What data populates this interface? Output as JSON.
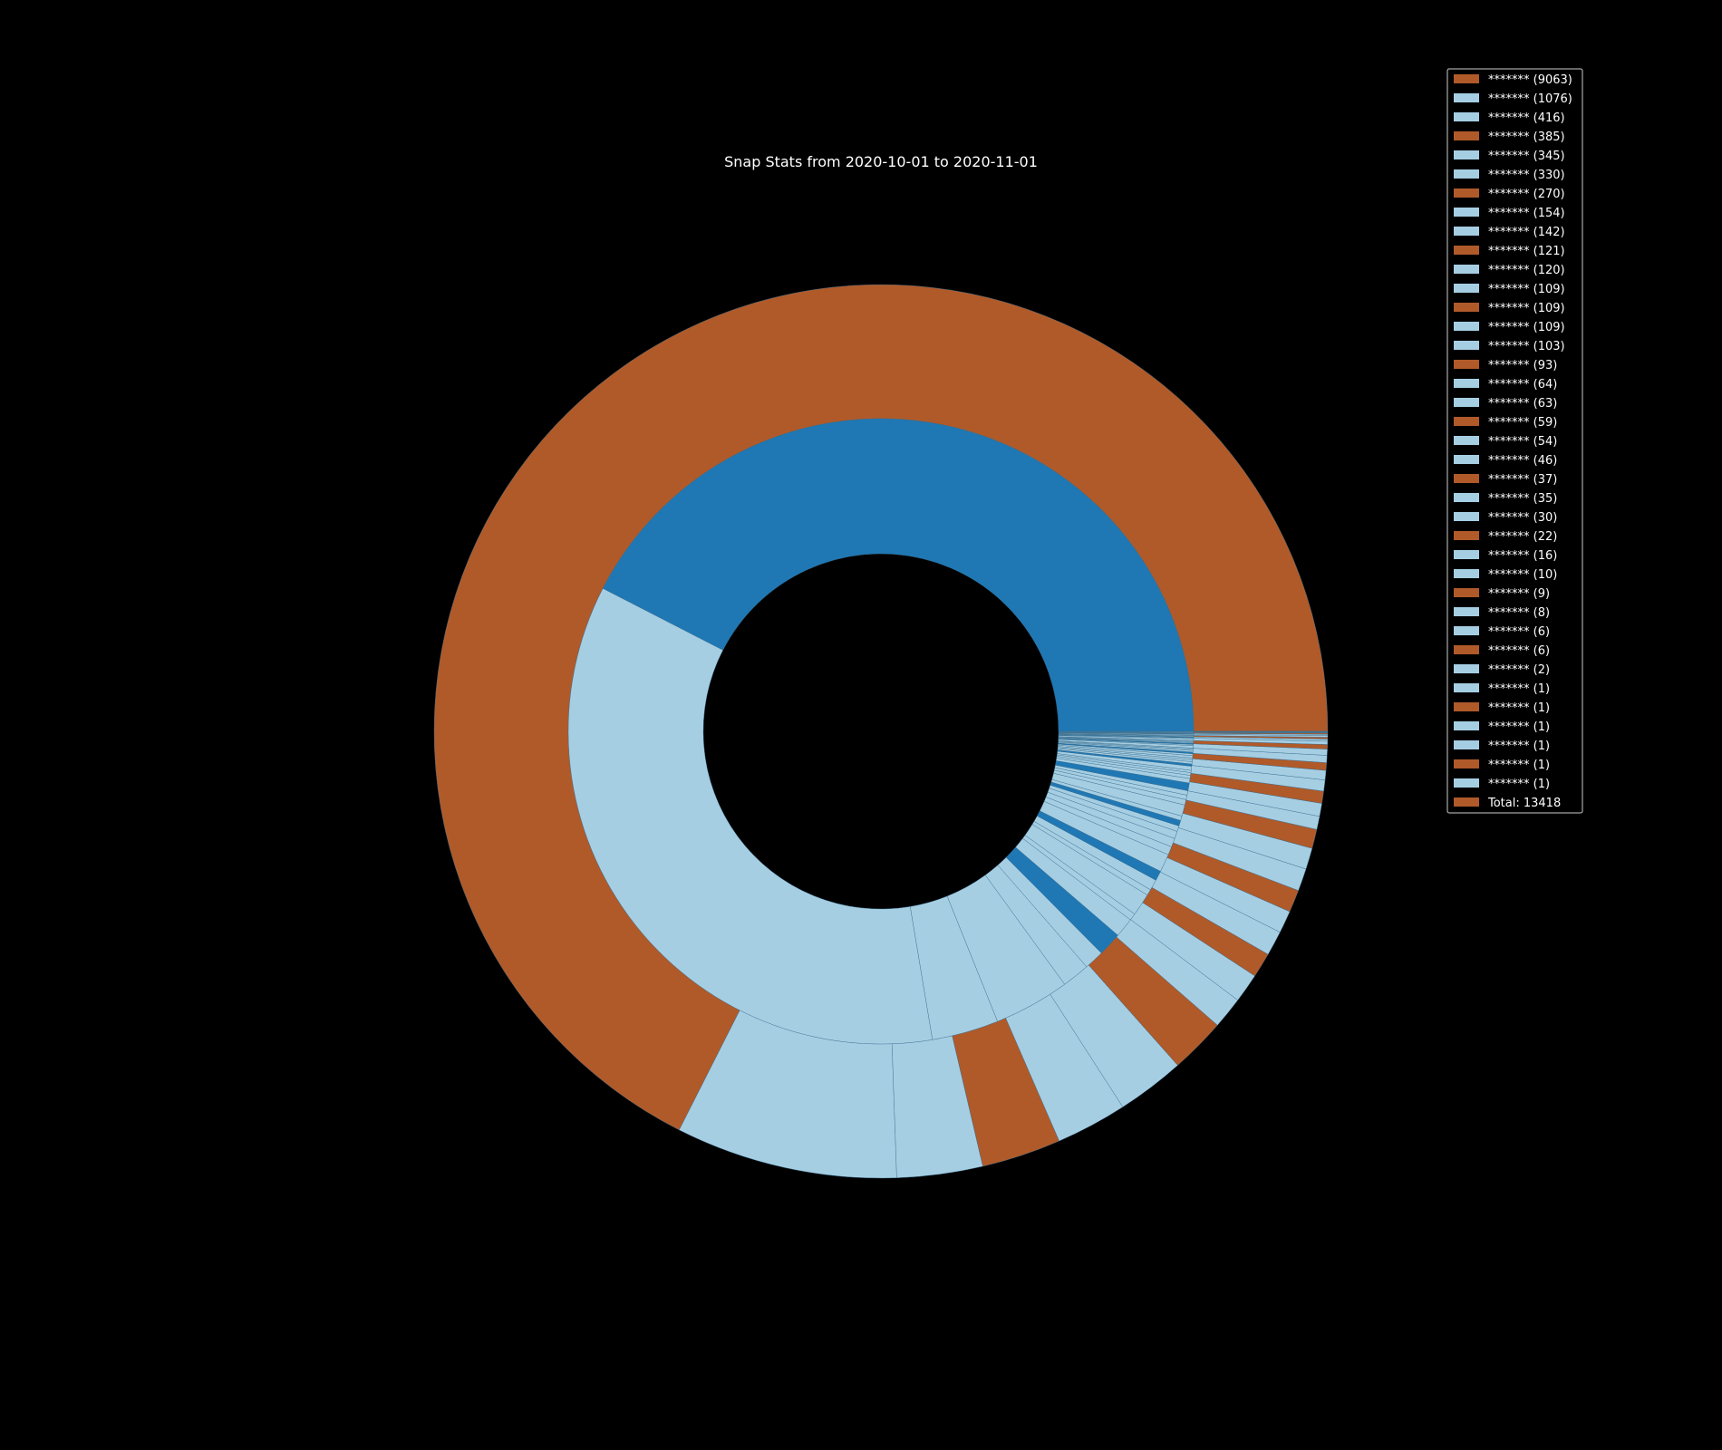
{
  "chart_data": {
    "type": "pie",
    "title": "Snap Stats from 2020-10-01 to 2020-11-01",
    "colors": {
      "outer": "#b05a2a",
      "outer_light": "#a6cee3",
      "inner": "#1f78b4",
      "inner_light": "#a6cee3",
      "background": "#000000",
      "wedge_edge": "#3a6f8f"
    },
    "outer_ring": [
      {
        "label": "******* (9063)",
        "value": 9063
      },
      {
        "label": "******* (1076)",
        "value": 1076
      },
      {
        "label": "******* (416)",
        "value": 416
      },
      {
        "label": "******* (385)",
        "value": 385
      },
      {
        "label": "******* (345)",
        "value": 345
      },
      {
        "label": "******* (330)",
        "value": 330
      },
      {
        "label": "******* (270)",
        "value": 270
      },
      {
        "label": "******* (154)",
        "value": 154
      },
      {
        "label": "******* (142)",
        "value": 142
      },
      {
        "label": "******* (121)",
        "value": 121
      },
      {
        "label": "******* (120)",
        "value": 120
      },
      {
        "label": "******* (109)",
        "value": 109
      },
      {
        "label": "******* (109)",
        "value": 109
      },
      {
        "label": "******* (109)",
        "value": 109
      },
      {
        "label": "******* (103)",
        "value": 103
      },
      {
        "label": "******* (93)",
        "value": 93
      },
      {
        "label": "******* (64)",
        "value": 64
      },
      {
        "label": "******* (63)",
        "value": 63
      },
      {
        "label": "******* (59)",
        "value": 59
      },
      {
        "label": "******* (54)",
        "value": 54
      },
      {
        "label": "******* (46)",
        "value": 46
      },
      {
        "label": "******* (37)",
        "value": 37
      },
      {
        "label": "******* (35)",
        "value": 35
      },
      {
        "label": "******* (30)",
        "value": 30
      },
      {
        "label": "******* (22)",
        "value": 22
      },
      {
        "label": "******* (16)",
        "value": 16
      },
      {
        "label": "******* (10)",
        "value": 10
      },
      {
        "label": "******* (9)",
        "value": 9
      },
      {
        "label": "******* (8)",
        "value": 8
      },
      {
        "label": "******* (6)",
        "value": 6
      },
      {
        "label": "******* (6)",
        "value": 6
      },
      {
        "label": "******* (2)",
        "value": 2
      },
      {
        "label": "******* (1)",
        "value": 1
      },
      {
        "label": "******* (1)",
        "value": 1
      },
      {
        "label": "******* (1)",
        "value": 1
      },
      {
        "label": "******* (1)",
        "value": 1
      },
      {
        "label": "******* (1)",
        "value": 1
      },
      {
        "label": "******* (1)",
        "value": 1
      }
    ],
    "outer_colors": [
      "outer",
      "outer_light",
      "outer_light",
      "outer",
      "outer_light",
      "outer_light",
      "outer",
      "outer_light",
      "outer_light",
      "outer",
      "outer_light",
      "outer_light",
      "outer",
      "outer_light",
      "outer_light",
      "outer",
      "outer_light",
      "outer_light",
      "outer",
      "outer_light",
      "outer_light",
      "outer",
      "outer_light",
      "outer_light",
      "outer",
      "outer_light",
      "outer_light",
      "outer",
      "outer_light",
      "outer_light",
      "outer",
      "outer_light",
      "outer_light",
      "outer",
      "outer_light",
      "outer_light",
      "outer",
      "outer_light"
    ],
    "inner_values": [
      3644,
      3021,
      296,
      336,
      123,
      88,
      106,
      87,
      31,
      100,
      27,
      48,
      44,
      80,
      37,
      39,
      33,
      25,
      25,
      20,
      50,
      24,
      20,
      20,
      34,
      20,
      14,
      12,
      10,
      18,
      10,
      10,
      9,
      8,
      10,
      8,
      7,
      7,
      6,
      5,
      11,
      5,
      5,
      4,
      4,
      4,
      8,
      4,
      3,
      3,
      3,
      3,
      4,
      2,
      2,
      2,
      2,
      2,
      1,
      1
    ],
    "inner_colors": [
      "inner",
      "inner_light",
      "inner_light",
      "inner_light",
      "inner_light",
      "inner_light",
      "inner",
      "inner_light",
      "inner_light",
      "inner_light",
      "inner_light",
      "inner_light",
      "inner",
      "inner_light",
      "inner_light",
      "inner_light",
      "inner_light",
      "inner_light",
      "inner",
      "inner_light",
      "inner_light",
      "inner_light",
      "inner_light",
      "inner_light",
      "inner",
      "inner_light",
      "inner_light",
      "inner_light",
      "inner_light",
      "inner_light",
      "inner",
      "inner_light",
      "inner_light",
      "inner_light",
      "inner_light",
      "inner_light",
      "inner",
      "inner_light",
      "inner_light",
      "inner_light",
      "inner_light",
      "inner_light",
      "inner",
      "inner_light",
      "inner_light",
      "inner_light",
      "inner_light",
      "inner_light",
      "inner",
      "inner_light",
      "inner_light",
      "inner_light",
      "inner_light",
      "inner_light",
      "inner",
      "inner_light",
      "inner_light",
      "inner_light",
      "inner_light",
      "inner_light"
    ],
    "legend": {
      "placement": "top-right",
      "total_label": "Total: 13418"
    }
  }
}
